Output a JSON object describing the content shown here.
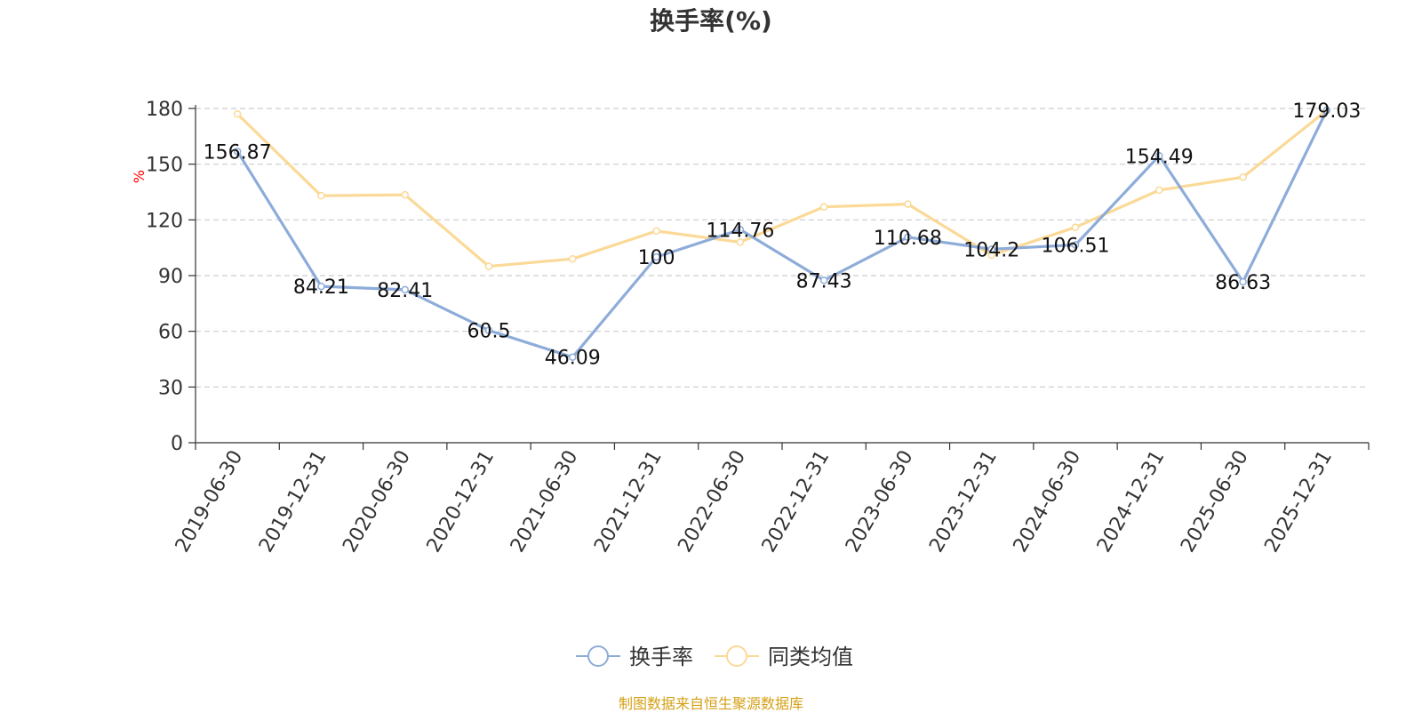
{
  "chart_data": {
    "type": "line",
    "title": "换手率(%)",
    "ylabel": "%",
    "xlabel": "",
    "ylim": [
      0,
      180
    ],
    "yticks": [
      0,
      30,
      60,
      90,
      120,
      150,
      180
    ],
    "grid": true,
    "legend_position": "bottom-center",
    "categories": [
      "2019-06-30",
      "2019-12-31",
      "2020-06-30",
      "2020-12-31",
      "2021-06-30",
      "2021-12-31",
      "2022-06-30",
      "2022-12-31",
      "2023-06-30",
      "2023-12-31",
      "2024-06-30",
      "2024-12-31",
      "2025-06-30",
      "2025-12-31"
    ],
    "series": [
      {
        "name": "换手率",
        "color": "#8eacd9",
        "values": [
          156.87,
          84.21,
          82.41,
          60.5,
          46.09,
          100,
          114.76,
          87.43,
          110.68,
          104.2,
          106.51,
          154.49,
          86.63,
          179.03
        ],
        "labels": [
          "156.87",
          "84.21",
          "82.41",
          "60.5",
          "46.09",
          "100",
          "114.76",
          "87.43",
          "110.68",
          "104.2",
          "106.51",
          "154.49",
          "86.63",
          "179.03"
        ]
      },
      {
        "name": "同类均值",
        "color": "#fbd997",
        "values": [
          177,
          133,
          133.5,
          95,
          99,
          114,
          108,
          127,
          128.5,
          101,
          116,
          136,
          143,
          179
        ]
      }
    ],
    "source": "制图数据来自恒生聚源数据库",
    "source_color": "#d4a017",
    "ylabel_color": "#ff0000"
  }
}
